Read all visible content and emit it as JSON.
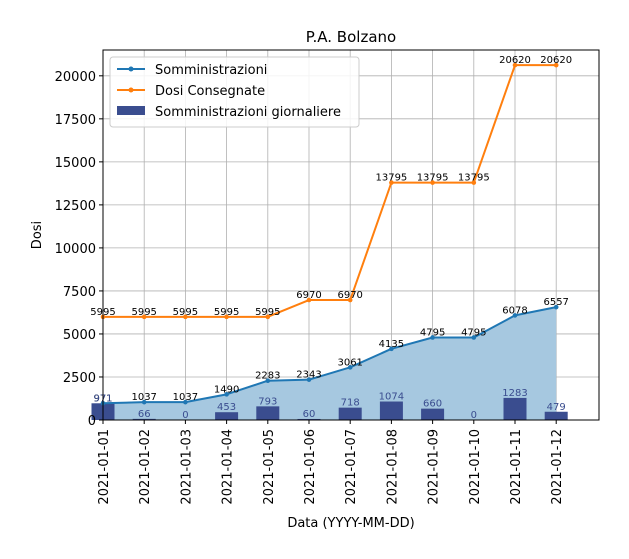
{
  "chart_data": {
    "type": "line",
    "title": "P.A. Bolzano",
    "xlabel": "Data (YYYY-MM-DD)",
    "ylabel": "Dosi",
    "ylim": [
      0,
      21500
    ],
    "yticks": [
      0,
      2500,
      5000,
      7500,
      10000,
      12500,
      15000,
      17500,
      20000
    ],
    "grid": true,
    "legend_position": "top-left",
    "categories": [
      "2021-01-01",
      "2021-01-02",
      "2021-01-03",
      "2021-01-04",
      "2021-01-05",
      "2021-01-06",
      "2021-01-07",
      "2021-01-08",
      "2021-01-09",
      "2021-01-10",
      "2021-01-11",
      "2021-01-12"
    ],
    "series": [
      {
        "name": "Somministrazioni",
        "kind": "line",
        "color": "#1f77b4",
        "label_color": "#000000",
        "values": [
          971,
          1037,
          1037,
          1490,
          2283,
          2343,
          3061,
          4135,
          4795,
          4795,
          6078,
          6557
        ]
      },
      {
        "name": "Dosi Consegnate",
        "kind": "step",
        "color": "#ff7f0e",
        "label_color": "#000000",
        "values": [
          5995,
          5995,
          5995,
          5995,
          5995,
          6970,
          6970,
          13795,
          13795,
          13795,
          20620,
          20620
        ]
      },
      {
        "name": "Somministrazioni giornaliere",
        "kind": "bar",
        "color": "#3a4d8f",
        "label_color": "#3a4d8f",
        "values": [
          971,
          66,
          0,
          453,
          793,
          60,
          718,
          1074,
          660,
          0,
          1283,
          479
        ]
      }
    ],
    "area_color": "#a6c8e0"
  }
}
